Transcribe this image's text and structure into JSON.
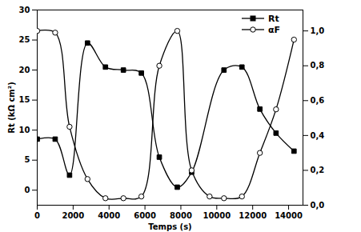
{
  "chart_data": {
    "type": "line",
    "x_label": "Temps (s)",
    "y_label": "Rt (kΩ cm²)",
    "xlim": [
      0,
      14800
    ],
    "xticks": [
      0,
      2000,
      4000,
      6000,
      8000,
      10000,
      12000,
      14000
    ],
    "ylim": [
      -2.5,
      30
    ],
    "yticks": [
      0,
      5,
      10,
      15,
      20,
      25,
      30
    ],
    "y2lim": [
      0,
      1.12
    ],
    "y2ticks": [
      {
        "value": 0,
        "label": "0,0"
      },
      {
        "value": 0.2,
        "label": "0,2"
      },
      {
        "value": 0.4,
        "label": "0,4"
      },
      {
        "value": 0.6,
        "label": "0,6"
      },
      {
        "value": 0.8,
        "label": "0,8"
      },
      {
        "value": 1.0,
        "label": "1,0"
      }
    ],
    "legend": "upper right",
    "series": [
      {
        "name": "Rt",
        "color": "#000000",
        "marker": "square",
        "line_style": "solid",
        "x": [
          0,
          1000,
          1800,
          2800,
          3800,
          4800,
          5800,
          6800,
          7800,
          8600,
          10400,
          11400,
          12400,
          13300,
          14300
        ],
        "values": [
          8.5,
          8.5,
          2.5,
          24.5,
          20.5,
          20,
          19.5,
          5.5,
          0.5,
          3,
          20,
          20.5,
          13.5,
          9.5,
          6.5
        ]
      },
      {
        "name": "αF",
        "color": "#000000",
        "marker": "circle",
        "line_style": "solid",
        "axis": "y2",
        "x": [
          0,
          1000,
          1800,
          2800,
          3800,
          4800,
          5800,
          6800,
          7800,
          8600,
          9600,
          10400,
          11400,
          12400,
          13300,
          14300
        ],
        "values": [
          1.0,
          0.99,
          0.45,
          0.15,
          0.04,
          0.04,
          0.05,
          0.8,
          1.0,
          0.2,
          0.05,
          0.04,
          0.05,
          0.3,
          0.55,
          0.95
        ]
      }
    ]
  }
}
